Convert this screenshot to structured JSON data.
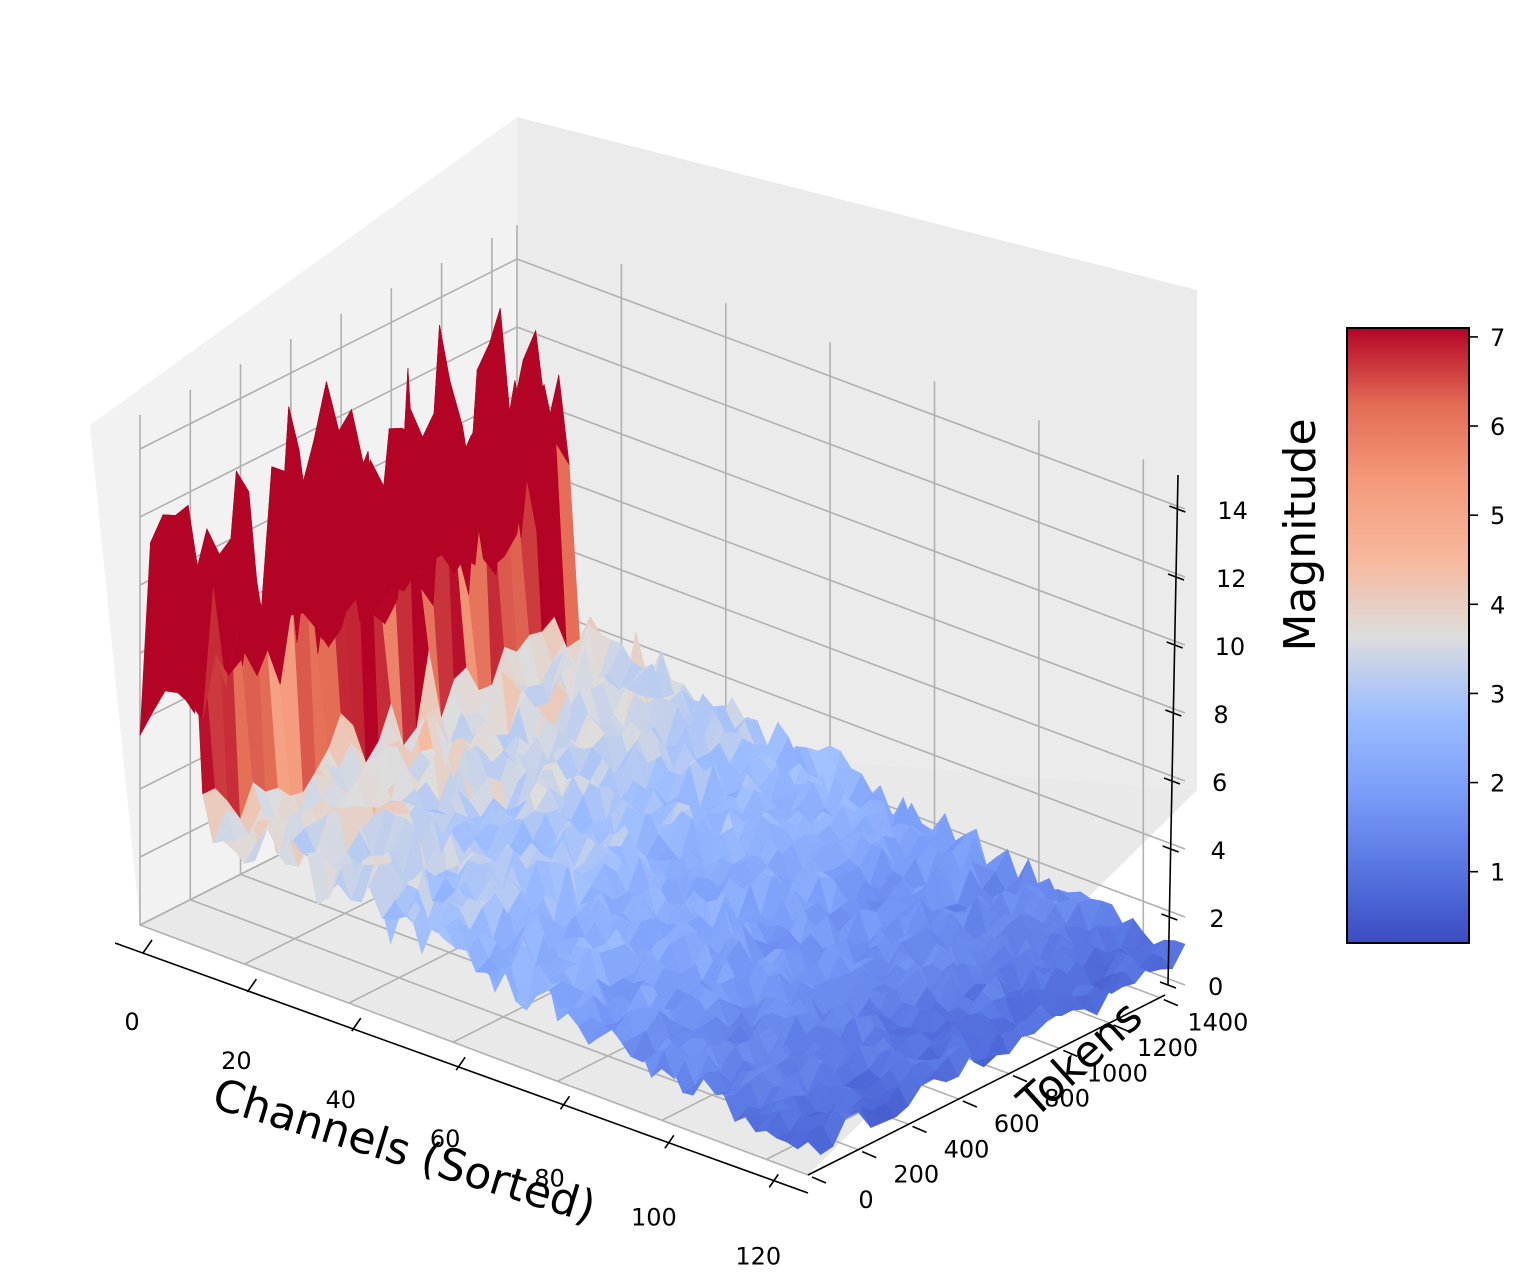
{
  "chart_data": {
    "type": "surface",
    "xlabel": "Channels (Sorted)",
    "ylabel": "Tokens",
    "zlabel": "Magnitude",
    "x_ticks": [
      0,
      20,
      40,
      60,
      80,
      100,
      120
    ],
    "y_ticks": [
      0,
      200,
      400,
      600,
      800,
      1000,
      1200,
      1400
    ],
    "z_ticks": [
      0,
      2,
      4,
      6,
      8,
      10,
      12,
      14
    ],
    "xlim": [
      0,
      128
    ],
    "ylim": [
      0,
      1500
    ],
    "zlim": [
      0,
      15
    ],
    "colormap": "coolwarm",
    "colorbar": {
      "ticks": [
        1,
        2,
        3,
        4,
        5,
        6,
        7
      ],
      "range": [
        0.2,
        7.1
      ],
      "placement": "right"
    },
    "series": [
      {
        "channels": [
          0,
          12
        ],
        "magnitude_range": [
          5,
          14
        ],
        "color_level": "high"
      },
      {
        "channels": [
          12,
          128
        ],
        "magnitude_range": [
          0,
          5
        ],
        "color_level": "low",
        "trend": "decreasing with channel index"
      }
    ],
    "colors": {
      "high": "#b40426",
      "mid": "#dddddd",
      "low": "#3b4cc0"
    }
  }
}
